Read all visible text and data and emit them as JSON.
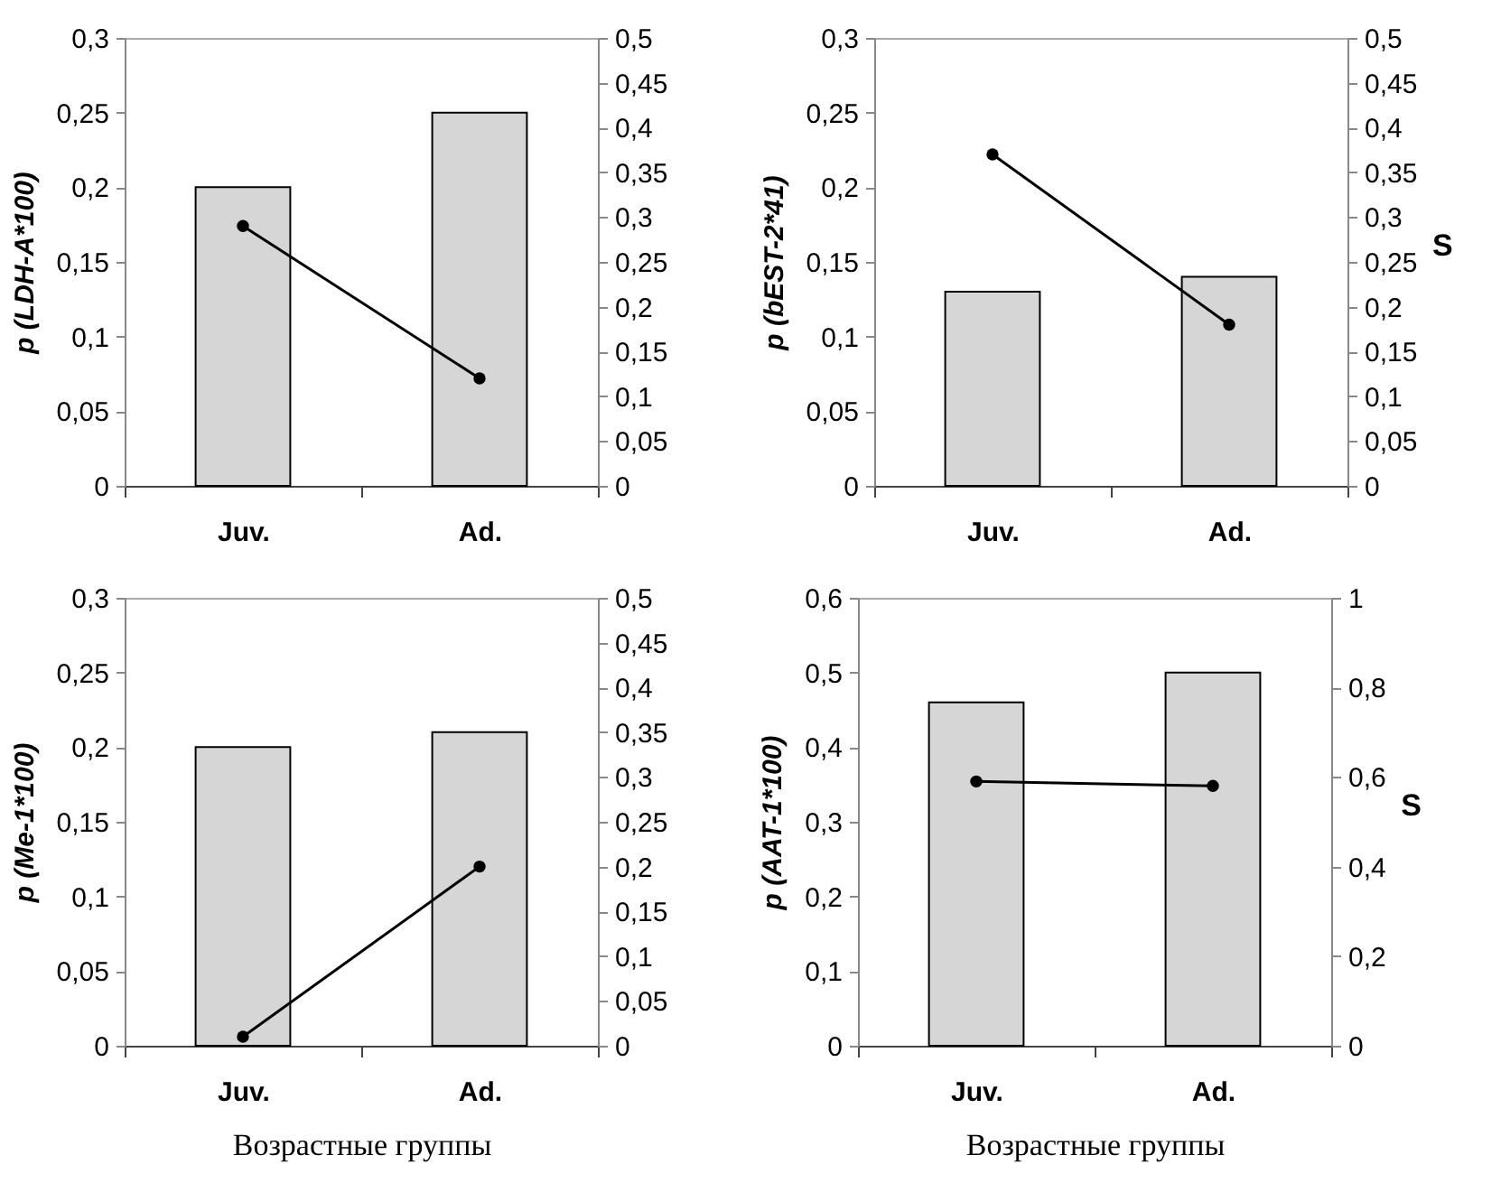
{
  "chart_data": [
    {
      "type": "bar",
      "categories": [
        "Juv.",
        "Ad."
      ],
      "ylabel": "p (LDH-A*100)",
      "series": [
        {
          "color": "#d6d6d6",
          "values": [
            0.2,
            0.25
          ]
        },
        {
          "type": "line",
          "axis": "y2",
          "color": "#000000",
          "marker": "circle",
          "values": [
            0.29,
            0.12
          ]
        }
      ],
      "ylim": [
        0,
        0.3
      ],
      "yticks": [
        {
          "value": 0,
          "label": "0"
        },
        {
          "value": 0.05,
          "label": "0,05"
        },
        {
          "value": 0.1,
          "label": "0,1"
        },
        {
          "value": 0.15,
          "label": "0,15"
        },
        {
          "value": 0.2,
          "label": "0,2"
        },
        {
          "value": 0.25,
          "label": "0,25"
        },
        {
          "value": 0.3,
          "label": "0,3"
        }
      ],
      "y2lim": [
        0,
        0.5
      ],
      "y2ticks": [
        {
          "value": 0,
          "label": "0"
        },
        {
          "value": 0.05,
          "label": "0,05"
        },
        {
          "value": 0.1,
          "label": "0,1"
        },
        {
          "value": 0.15,
          "label": "0,15"
        },
        {
          "value": 0.2,
          "label": "0,2"
        },
        {
          "value": 0.25,
          "label": "0,25"
        },
        {
          "value": 0.3,
          "label": "0,3"
        },
        {
          "value": 0.35,
          "label": "0,35"
        },
        {
          "value": 0.4,
          "label": "0,4"
        },
        {
          "value": 0.45,
          "label": "0,45"
        },
        {
          "value": 0.5,
          "label": "0,5"
        }
      ]
    },
    {
      "type": "bar",
      "categories": [
        "Juv.",
        "Ad."
      ],
      "ylabel": "p (bEST-2*41)",
      "y2label": "S",
      "series": [
        {
          "color": "#d6d6d6",
          "values": [
            0.13,
            0.14
          ]
        },
        {
          "type": "line",
          "axis": "y2",
          "color": "#000000",
          "marker": "circle",
          "values": [
            0.37,
            0.18
          ]
        }
      ],
      "ylim": [
        0,
        0.3
      ],
      "yticks": [
        {
          "value": 0,
          "label": "0"
        },
        {
          "value": 0.05,
          "label": "0,05"
        },
        {
          "value": 0.1,
          "label": "0,1"
        },
        {
          "value": 0.15,
          "label": "0,15"
        },
        {
          "value": 0.2,
          "label": "0,2"
        },
        {
          "value": 0.25,
          "label": "0,25"
        },
        {
          "value": 0.3,
          "label": "0,3"
        }
      ],
      "y2lim": [
        0,
        0.5
      ],
      "y2ticks": [
        {
          "value": 0,
          "label": "0"
        },
        {
          "value": 0.05,
          "label": "0,05"
        },
        {
          "value": 0.1,
          "label": "0,1"
        },
        {
          "value": 0.15,
          "label": "0,15"
        },
        {
          "value": 0.2,
          "label": "0,2"
        },
        {
          "value": 0.25,
          "label": "0,25"
        },
        {
          "value": 0.3,
          "label": "0,3"
        },
        {
          "value": 0.35,
          "label": "0,35"
        },
        {
          "value": 0.4,
          "label": "0,4"
        },
        {
          "value": 0.45,
          "label": "0,45"
        },
        {
          "value": 0.5,
          "label": "0,5"
        }
      ]
    },
    {
      "type": "bar",
      "categories": [
        "Juv.",
        "Ad."
      ],
      "ylabel": "p (Me-1*100)",
      "xlabel": "Возрастные группы",
      "series": [
        {
          "color": "#d6d6d6",
          "values": [
            0.2,
            0.21
          ]
        },
        {
          "type": "line",
          "axis": "y2",
          "color": "#000000",
          "marker": "circle",
          "values": [
            0.01,
            0.2
          ]
        }
      ],
      "ylim": [
        0,
        0.3
      ],
      "yticks": [
        {
          "value": 0,
          "label": "0"
        },
        {
          "value": 0.05,
          "label": "0,05"
        },
        {
          "value": 0.1,
          "label": "0,1"
        },
        {
          "value": 0.15,
          "label": "0,15"
        },
        {
          "value": 0.2,
          "label": "0,2"
        },
        {
          "value": 0.25,
          "label": "0,25"
        },
        {
          "value": 0.3,
          "label": "0,3"
        }
      ],
      "y2lim": [
        0,
        0.5
      ],
      "y2ticks": [
        {
          "value": 0,
          "label": "0"
        },
        {
          "value": 0.05,
          "label": "0,05"
        },
        {
          "value": 0.1,
          "label": "0,1"
        },
        {
          "value": 0.15,
          "label": "0,15"
        },
        {
          "value": 0.2,
          "label": "0,2"
        },
        {
          "value": 0.25,
          "label": "0,25"
        },
        {
          "value": 0.3,
          "label": "0,3"
        },
        {
          "value": 0.35,
          "label": "0,35"
        },
        {
          "value": 0.4,
          "label": "0,4"
        },
        {
          "value": 0.45,
          "label": "0,45"
        },
        {
          "value": 0.5,
          "label": "0,5"
        }
      ]
    },
    {
      "type": "bar",
      "categories": [
        "Juv.",
        "Ad."
      ],
      "ylabel": "p (AAT-1*100)",
      "y2label": "S",
      "xlabel": "Возрастные группы",
      "series": [
        {
          "color": "#d6d6d6",
          "values": [
            0.46,
            0.5
          ]
        },
        {
          "type": "line",
          "axis": "y2",
          "color": "#000000",
          "marker": "circle",
          "values": [
            0.59,
            0.58
          ]
        }
      ],
      "ylim": [
        0,
        0.6
      ],
      "yticks": [
        {
          "value": 0,
          "label": "0"
        },
        {
          "value": 0.1,
          "label": "0,1"
        },
        {
          "value": 0.2,
          "label": "0,2"
        },
        {
          "value": 0.3,
          "label": "0,3"
        },
        {
          "value": 0.4,
          "label": "0,4"
        },
        {
          "value": 0.5,
          "label": "0,5"
        },
        {
          "value": 0.6,
          "label": "0,6"
        }
      ],
      "y2lim": [
        0,
        1
      ],
      "y2ticks": [
        {
          "value": 0,
          "label": "0"
        },
        {
          "value": 0.2,
          "label": "0,2"
        },
        {
          "value": 0.4,
          "label": "0,4"
        },
        {
          "value": 0.6,
          "label": "0,6"
        },
        {
          "value": 0.8,
          "label": "0,8"
        },
        {
          "value": 1,
          "label": "1"
        }
      ]
    }
  ]
}
